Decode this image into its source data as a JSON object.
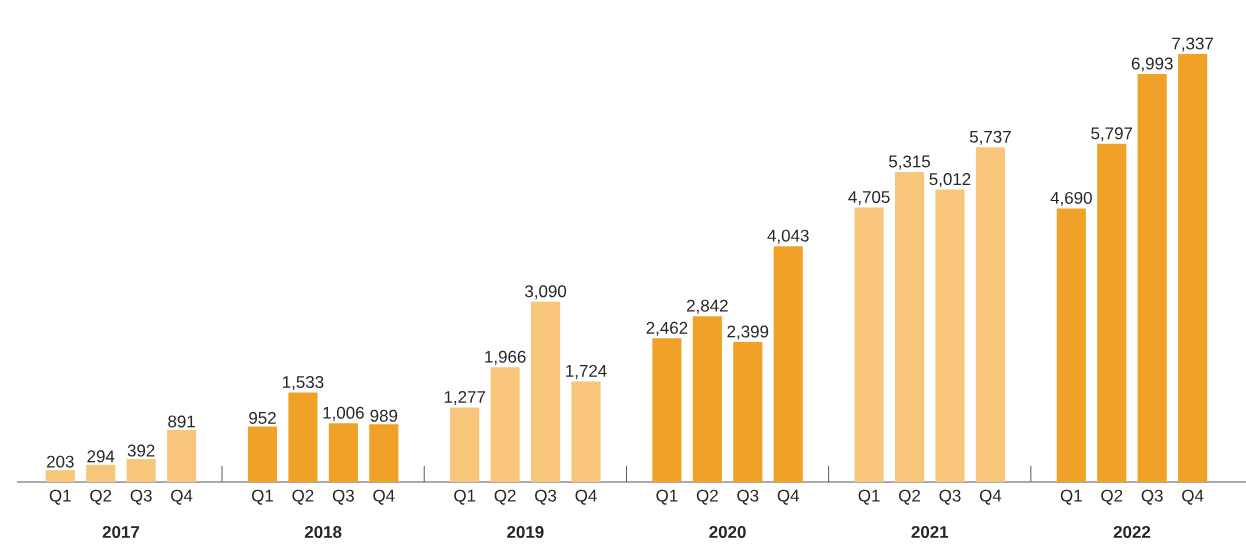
{
  "chart_data": {
    "type": "bar",
    "categories": [
      "Q1",
      "Q2",
      "Q3",
      "Q4",
      "Q1",
      "Q2",
      "Q3",
      "Q4",
      "Q1",
      "Q2",
      "Q3",
      "Q4",
      "Q1",
      "Q2",
      "Q3",
      "Q4",
      "Q1",
      "Q2",
      "Q3",
      "Q4",
      "Q1",
      "Q2",
      "Q3",
      "Q4"
    ],
    "series": [
      {
        "name": "2017",
        "color": "#f7c67a",
        "values": [
          203,
          294,
          392,
          891,
          null,
          null,
          null,
          null,
          null,
          null,
          null,
          null,
          null,
          null,
          null,
          null,
          null,
          null,
          null,
          null,
          null,
          null,
          null,
          null
        ],
        "value_labels": [
          "203",
          "294",
          "392",
          "891",
          null,
          null,
          null,
          null,
          null,
          null,
          null,
          null,
          null,
          null,
          null,
          null,
          null,
          null,
          null,
          null,
          null,
          null,
          null,
          null
        ]
      },
      {
        "name": "2018",
        "color": "#f0a128",
        "values": [
          null,
          null,
          null,
          null,
          952,
          1533,
          1006,
          989,
          null,
          null,
          null,
          null,
          null,
          null,
          null,
          null,
          null,
          null,
          null,
          null,
          null,
          null,
          null,
          null
        ],
        "value_labels": [
          null,
          null,
          null,
          null,
          "952",
          "1,533",
          "1,006",
          "989",
          null,
          null,
          null,
          null,
          null,
          null,
          null,
          null,
          null,
          null,
          null,
          null,
          null,
          null,
          null,
          null
        ]
      },
      {
        "name": "2019",
        "color": "#f7c67a",
        "values": [
          null,
          null,
          null,
          null,
          null,
          null,
          null,
          null,
          1277,
          1966,
          3090,
          1724,
          null,
          null,
          null,
          null,
          null,
          null,
          null,
          null,
          null,
          null,
          null,
          null
        ],
        "value_labels": [
          null,
          null,
          null,
          null,
          null,
          null,
          null,
          null,
          "1,277",
          "1,966",
          "3,090",
          "1,724",
          null,
          null,
          null,
          null,
          null,
          null,
          null,
          null,
          null,
          null,
          null,
          null
        ]
      },
      {
        "name": "2020",
        "color": "#f0a128",
        "values": [
          null,
          null,
          null,
          null,
          null,
          null,
          null,
          null,
          null,
          null,
          null,
          null,
          2462,
          2842,
          2399,
          4043,
          null,
          null,
          null,
          null,
          null,
          null,
          null,
          null
        ],
        "value_labels": [
          null,
          null,
          null,
          null,
          null,
          null,
          null,
          null,
          null,
          null,
          null,
          null,
          "2,462",
          "2,842",
          "2,399",
          "4,043",
          null,
          null,
          null,
          null,
          null,
          null,
          null,
          null
        ]
      },
      {
        "name": "2021",
        "color": "#f7c67a",
        "values": [
          null,
          null,
          null,
          null,
          null,
          null,
          null,
          null,
          null,
          null,
          null,
          null,
          null,
          null,
          null,
          null,
          4705,
          5315,
          5012,
          5737,
          null,
          null,
          null,
          null
        ],
        "value_labels": [
          null,
          null,
          null,
          null,
          null,
          null,
          null,
          null,
          null,
          null,
          null,
          null,
          null,
          null,
          null,
          null,
          "4,705",
          "5,315",
          "5,012",
          "5,737",
          null,
          null,
          null,
          null
        ]
      },
      {
        "name": "2022",
        "color": "#f0a128",
        "values": [
          null,
          null,
          null,
          null,
          null,
          null,
          null,
          null,
          null,
          null,
          null,
          null,
          null,
          null,
          null,
          null,
          null,
          null,
          null,
          null,
          4690,
          5797,
          6993,
          7337
        ],
        "value_labels": [
          null,
          null,
          null,
          null,
          null,
          null,
          null,
          null,
          null,
          null,
          null,
          null,
          null,
          null,
          null,
          null,
          null,
          null,
          null,
          null,
          "4,690",
          "5,797",
          "6,993",
          "7,337"
        ]
      }
    ]
  }
}
